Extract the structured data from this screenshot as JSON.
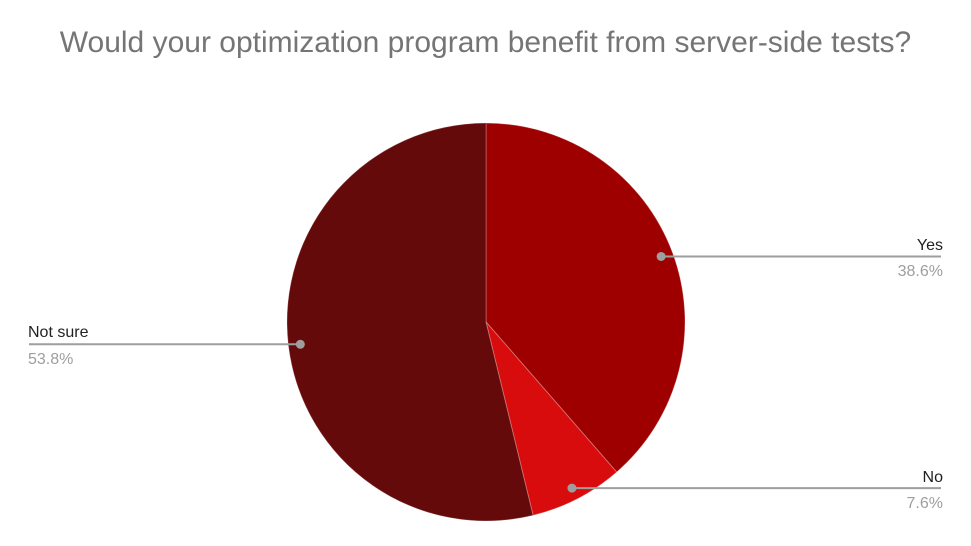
{
  "title": "Would your optimization program benefit from server-side tests?",
  "colors": {
    "background": "#ffffff",
    "title_text": "#757575",
    "label_text": "#212121",
    "percent_text": "#9e9e9e",
    "leader_line": "#9e9e9e",
    "leader_dot": "#9e9e9e"
  },
  "chart_data": {
    "type": "pie",
    "title": "Would your optimization program benefit from server-side tests?",
    "legend_position": "none",
    "labels_style": "outside-callout",
    "start_angle_deg": 0,
    "direction": "clockwise",
    "slices": [
      {
        "label": "Yes",
        "value": 38.6,
        "percent_label": "38.6%",
        "color": "#9e0000"
      },
      {
        "label": "No",
        "value": 7.6,
        "percent_label": "7.6%",
        "color": "#d80c0c"
      },
      {
        "label": "Not sure",
        "value": 53.8,
        "percent_label": "53.8%",
        "color": "#650a0a"
      }
    ]
  }
}
